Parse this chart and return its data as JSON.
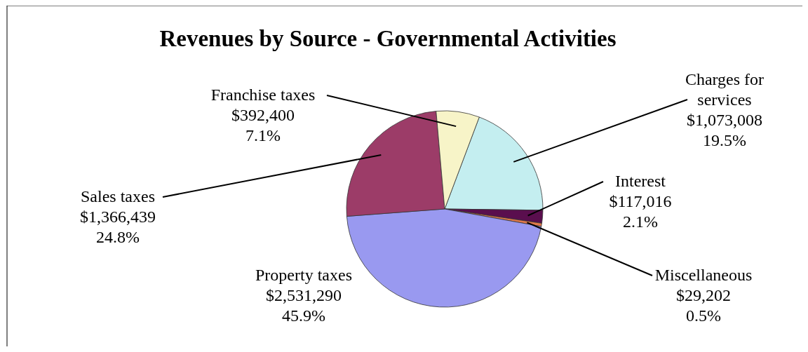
{
  "chart_data": {
    "type": "pie",
    "title": "Revenues by Source - Governmental Activities",
    "categories": [
      "Charges for services",
      "Interest",
      "Miscellaneous",
      "Property taxes",
      "Sales taxes",
      "Franchise taxes"
    ],
    "values": [
      1073008,
      117016,
      29202,
      2531290,
      1366439,
      392400
    ],
    "value_labels": [
      "$1,073,008\n19.5%",
      "$117,016\n2.1%",
      "$29,202\n0.5%",
      "$2,531,290\n45.9%",
      "$1,366,439\n24.8%",
      "$392,400\n7.1%"
    ],
    "colors": [
      "#c4eef0",
      "#5a0e4e",
      "#e0784a",
      "#9999f0",
      "#9c3c68",
      "#f7f4c8"
    ]
  }
}
